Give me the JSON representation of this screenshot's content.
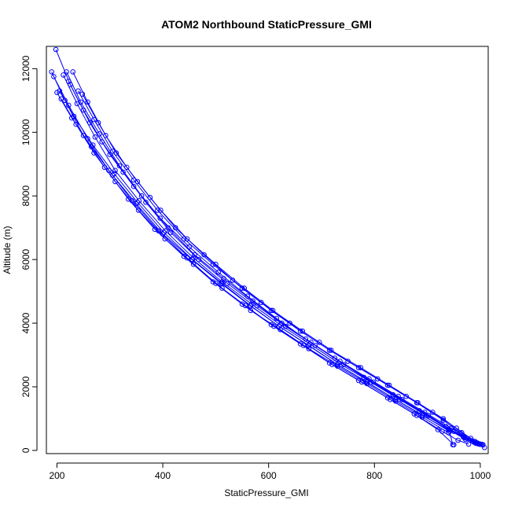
{
  "chart_data": {
    "type": "scatter",
    "title": "ATOM2 Northbound StaticPressure_GMI",
    "xlabel": "StaticPressure_GMI",
    "ylabel": "Altitude (m)",
    "xlim": [
      180,
      1015
    ],
    "ylim": [
      -100,
      12700
    ],
    "xticks": [
      200,
      400,
      600,
      800,
      1000
    ],
    "yticks": [
      0,
      2000,
      4000,
      6000,
      8000,
      10000,
      12000
    ],
    "grid": false,
    "color": "#0000ff",
    "marker": "open-circle",
    "series": [
      {
        "x": [
          198,
          225,
          262,
          300,
          345,
          395,
          450,
          505,
          560,
          615,
          670,
          725,
          780,
          835,
          885,
          935,
          970,
          990,
          1000,
          1005
        ],
        "y": [
          12600,
          11500,
          10300,
          9300,
          8300,
          7300,
          6400,
          5600,
          4850,
          4150,
          3500,
          2900,
          2300,
          1750,
          1250,
          750,
          400,
          250,
          200,
          180
        ]
      },
      {
        "x": [
          218,
          245,
          280,
          318,
          360,
          410,
          460,
          515,
          570,
          625,
          680,
          735,
          790,
          845,
          895,
          945,
          975,
          995,
          1003
        ],
        "y": [
          11900,
          10950,
          9950,
          8950,
          8000,
          7000,
          6150,
          5400,
          4700,
          4000,
          3400,
          2800,
          2250,
          1700,
          1200,
          700,
          380,
          230,
          190
        ]
      },
      {
        "x": [
          190,
          215,
          250,
          290,
          335,
          385,
          440,
          495,
          550,
          605,
          660,
          715,
          770,
          825,
          875,
          920,
          950
        ],
        "y": [
          11900,
          11000,
          9900,
          8900,
          7900,
          6950,
          6100,
          5300,
          4600,
          3950,
          3350,
          2750,
          2200,
          1650,
          1150,
          650,
          180
        ]
      },
      {
        "x": [
          200,
          228,
          265,
          305,
          350,
          400,
          455,
          510,
          565,
          620,
          675,
          730,
          785,
          840,
          890,
          940,
          972,
          992,
          1002
        ],
        "y": [
          11250,
          10450,
          9550,
          8650,
          7750,
          6800,
          6000,
          5250,
          4550,
          3900,
          3300,
          2700,
          2150,
          1600,
          1100,
          650,
          350,
          220,
          190
        ]
      },
      {
        "x": [
          212,
          238,
          272,
          310,
          355,
          405,
          458,
          512,
          568,
          622,
          678,
          732,
          788,
          842,
          893,
          942,
          968,
          988,
          998
        ],
        "y": [
          11800,
          10900,
          9850,
          8800,
          7850,
          6900,
          6050,
          5300,
          4600,
          3950,
          3350,
          2750,
          2200,
          1650,
          1150,
          650,
          420,
          260,
          200
        ]
      },
      {
        "x": [
          222,
          250,
          285,
          325,
          368,
          415,
          468,
          522,
          578,
          632,
          688,
          742,
          798,
          852,
          902,
          950,
          980,
          998,
          1008
        ],
        "y": [
          11600,
          10700,
          9700,
          8750,
          7800,
          6850,
          6000,
          5250,
          4550,
          3900,
          3300,
          2700,
          2150,
          1600,
          1100,
          600,
          330,
          200,
          90
        ]
      },
      {
        "x": [
          240,
          270,
          305,
          345,
          390,
          440,
          495,
          550,
          605,
          660,
          715,
          770,
          825,
          880,
          930,
          962,
          985
        ],
        "y": [
          11300,
          10400,
          9400,
          8500,
          7550,
          6650,
          5850,
          5100,
          4400,
          3750,
          3150,
          2600,
          2050,
          1500,
          950,
          550,
          300
        ]
      },
      {
        "x": [
          194,
          222,
          258,
          298,
          342,
          392,
          446,
          500,
          556,
          610,
          666,
          720,
          776,
          830,
          880,
          928,
          958,
          978
        ],
        "y": [
          11750,
          10850,
          9800,
          8800,
          7850,
          6900,
          6050,
          5250,
          4550,
          3900,
          3300,
          2700,
          2150,
          1600,
          1100,
          600,
          320,
          200
        ]
      },
      {
        "x": [
          205,
          232,
          268,
          308,
          352,
          402,
          456,
          512,
          566,
          620,
          676,
          730,
          786,
          840,
          892,
          942,
          948
        ],
        "y": [
          11300,
          10500,
          9600,
          8700,
          7800,
          6850,
          6000,
          5250,
          4550,
          3900,
          3300,
          2700,
          2150,
          1600,
          1100,
          600,
          180
        ]
      },
      {
        "x": [
          230,
          258,
          292,
          332,
          376,
          424,
          478,
          532,
          586,
          640,
          696,
          750,
          806,
          860,
          910,
          955,
          982,
          996
        ],
        "y": [
          11900,
          10950,
          9900,
          8900,
          7950,
          7000,
          6150,
          5350,
          4650,
          4000,
          3400,
          2800,
          2250,
          1700,
          1200,
          700,
          380,
          210
        ]
      },
      {
        "x": [
          208,
          236,
          270,
          310,
          354,
          404,
          458,
          512,
          566,
          622,
          676,
          730,
          786,
          840,
          890,
          940
        ],
        "y": [
          11050,
          10250,
          9350,
          8450,
          7550,
          6650,
          5850,
          5100,
          4400,
          3800,
          3200,
          2650,
          2100,
          1550,
          1050,
          560
        ]
      },
      {
        "x": [
          248,
          278,
          312,
          352,
          396,
          446,
          500,
          554,
          608,
          664,
          718,
          774,
          828,
          882,
          930,
          965,
          990,
          1000
        ],
        "y": [
          11200,
          10300,
          9350,
          8450,
          7550,
          6650,
          5850,
          5100,
          4400,
          3750,
          3150,
          2600,
          2050,
          1500,
          1000,
          560,
          280,
          200
        ]
      }
    ]
  }
}
